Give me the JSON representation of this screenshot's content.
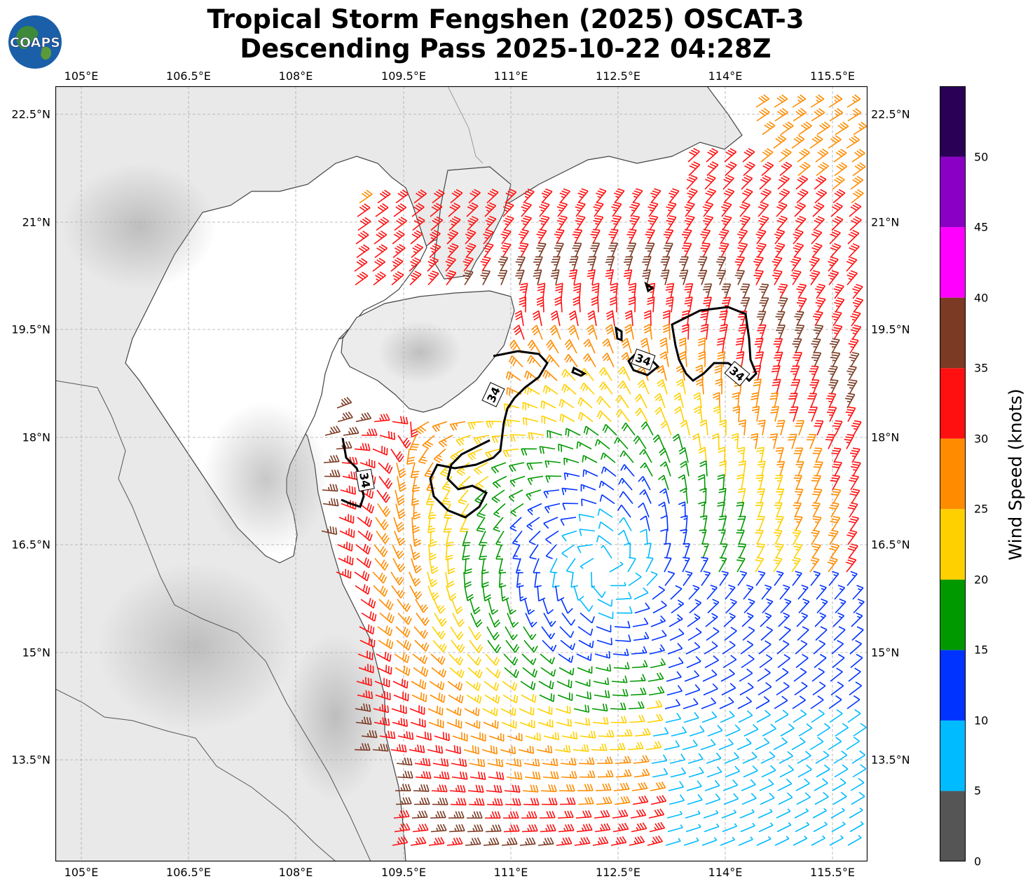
{
  "title_line1": "Tropical Storm Fengshen (2025) OSCAT-3",
  "title_line2": "Descending Pass 2025-10-22 04:28Z",
  "logo_text": "COAPS",
  "lon_ticks": [
    "105°E",
    "106.5°E",
    "108°E",
    "109.5°E",
    "111°E",
    "112.5°E",
    "114°E",
    "115.5°E"
  ],
  "lat_ticks": [
    "22.5°N",
    "21°N",
    "19.5°N",
    "18°N",
    "16.5°N",
    "15°N",
    "13.5°N"
  ],
  "contour_label": "34",
  "colorbar": {
    "label": "Wind Speed (knots)",
    "ticks": [
      "0",
      "5",
      "10",
      "15",
      "20",
      "25",
      "30",
      "35",
      "40",
      "45",
      "50"
    ],
    "colors": [
      "#555555",
      "#00bbff",
      "#0033ff",
      "#009900",
      "#ffd000",
      "#ff8c00",
      "#ff1010",
      "#7b3a23",
      "#ff00ff",
      "#8a00c4",
      "#2a0057"
    ]
  },
  "map": {
    "lon_min": 104.63,
    "lon_max": 115.97,
    "lat_min": 12.11,
    "lat_max": 22.9
  },
  "storm_center": {
    "lon": 112.3,
    "lat": 16.2
  }
}
